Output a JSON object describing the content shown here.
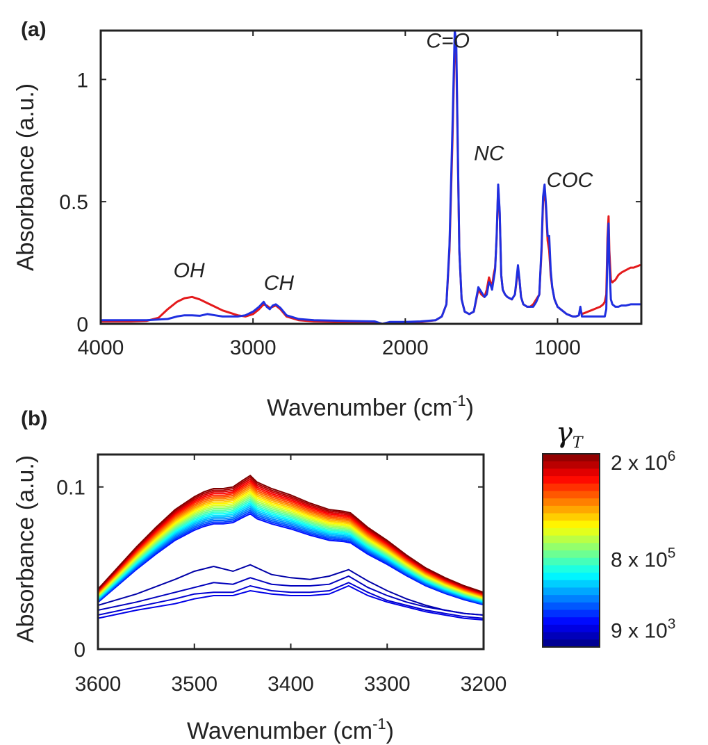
{
  "figure": {
    "panel_a_label": "(a)",
    "panel_b_label": "(b)"
  },
  "colors": {
    "red_curve": "#e41a1c",
    "blue_curve": "#1f2fe0",
    "axis": "#222222"
  },
  "chart_data": [
    {
      "id": "panel-a",
      "type": "line",
      "title": "",
      "xlabel": "Wavenumber (cm",
      "xlabel_sup": "-1",
      "xlabel_end": ")",
      "ylabel": "Absorbance (a.u.)",
      "xlim": [
        4000,
        450
      ],
      "ylim": [
        0,
        1.2
      ],
      "xticks": [
        4000,
        3000,
        2000,
        1000
      ],
      "xtick_labels": [
        "4000",
        "3000",
        "2000",
        "1000"
      ],
      "yticks": [
        0,
        0.5,
        1
      ],
      "ytick_labels": [
        "0",
        "0.5",
        "1"
      ],
      "grid": false,
      "annotations": [
        {
          "text": "OH",
          "x": 3420,
          "y": 0.19
        },
        {
          "text": "CH",
          "x": 2830,
          "y": 0.14
        },
        {
          "text": "C=O",
          "x": 1720,
          "y": 1.13
        },
        {
          "text": "NC",
          "x": 1450,
          "y": 0.67
        },
        {
          "text": "COC",
          "x": 920,
          "y": 0.56
        }
      ],
      "series": [
        {
          "name": "red",
          "color": "#e41a1c",
          "x": [
            4000,
            3800,
            3700,
            3620,
            3560,
            3500,
            3450,
            3400,
            3350,
            3300,
            3250,
            3200,
            3150,
            3100,
            3050,
            3000,
            2960,
            2930,
            2910,
            2890,
            2870,
            2850,
            2820,
            2780,
            2700,
            2600,
            2400,
            2200,
            2150,
            2100,
            2000,
            1900,
            1800,
            1760,
            1730,
            1710,
            1690,
            1675,
            1665,
            1655,
            1645,
            1630,
            1610,
            1580,
            1550,
            1520,
            1500,
            1480,
            1465,
            1450,
            1440,
            1430,
            1420,
            1410,
            1400,
            1390,
            1380,
            1370,
            1360,
            1345,
            1330,
            1300,
            1280,
            1260,
            1250,
            1240,
            1225,
            1200,
            1180,
            1160,
            1150,
            1140,
            1120,
            1105,
            1095,
            1085,
            1075,
            1065,
            1055,
            1045,
            1035,
            1020,
            1000,
            980,
            960,
            940,
            920,
            900,
            880,
            860,
            850,
            840,
            820,
            800,
            780,
            760,
            740,
            720,
            700,
            690,
            680,
            672,
            665,
            660,
            650,
            640,
            620,
            600,
            580,
            550,
            520,
            500,
            480,
            460,
            450
          ],
          "y": [
            0.01,
            0.01,
            0.012,
            0.025,
            0.06,
            0.09,
            0.105,
            0.11,
            0.1,
            0.085,
            0.07,
            0.055,
            0.045,
            0.035,
            0.03,
            0.04,
            0.06,
            0.08,
            0.075,
            0.065,
            0.07,
            0.075,
            0.06,
            0.03,
            0.015,
            0.01,
            0.008,
            0.006,
            0.0,
            0.005,
            0.005,
            0.008,
            0.015,
            0.03,
            0.08,
            0.3,
            0.75,
            1.15,
            1.1,
            0.7,
            0.3,
            0.1,
            0.05,
            0.04,
            0.05,
            0.14,
            0.12,
            0.11,
            0.14,
            0.19,
            0.17,
            0.15,
            0.2,
            0.23,
            0.35,
            0.56,
            0.45,
            0.2,
            0.14,
            0.12,
            0.11,
            0.1,
            0.12,
            0.22,
            0.18,
            0.11,
            0.08,
            0.07,
            0.07,
            0.08,
            0.09,
            0.1,
            0.12,
            0.3,
            0.5,
            0.55,
            0.46,
            0.34,
            0.3,
            0.2,
            0.15,
            0.1,
            0.07,
            0.06,
            0.05,
            0.04,
            0.035,
            0.03,
            0.03,
            0.035,
            0.06,
            0.04,
            0.045,
            0.05,
            0.055,
            0.06,
            0.065,
            0.07,
            0.08,
            0.09,
            0.12,
            0.35,
            0.44,
            0.3,
            0.18,
            0.17,
            0.18,
            0.2,
            0.21,
            0.22,
            0.23,
            0.23,
            0.235,
            0.24,
            0.24
          ]
        },
        {
          "name": "blue",
          "color": "#1f2fe0",
          "x": [
            4000,
            3800,
            3700,
            3620,
            3560,
            3500,
            3450,
            3400,
            3350,
            3300,
            3250,
            3200,
            3150,
            3100,
            3050,
            3000,
            2960,
            2930,
            2910,
            2890,
            2870,
            2850,
            2820,
            2780,
            2700,
            2600,
            2400,
            2200,
            2150,
            2100,
            2000,
            1900,
            1800,
            1760,
            1730,
            1710,
            1690,
            1675,
            1665,
            1655,
            1645,
            1630,
            1610,
            1580,
            1550,
            1520,
            1500,
            1480,
            1465,
            1450,
            1440,
            1430,
            1420,
            1410,
            1400,
            1390,
            1380,
            1370,
            1360,
            1345,
            1330,
            1300,
            1280,
            1260,
            1250,
            1240,
            1225,
            1200,
            1180,
            1160,
            1150,
            1140,
            1120,
            1105,
            1095,
            1085,
            1075,
            1065,
            1055,
            1045,
            1035,
            1020,
            1000,
            980,
            960,
            940,
            920,
            900,
            880,
            860,
            850,
            840,
            820,
            800,
            780,
            760,
            740,
            720,
            700,
            690,
            680,
            672,
            665,
            660,
            650,
            640,
            620,
            600,
            580,
            550,
            520,
            500,
            480,
            460,
            450
          ],
          "y": [
            0.015,
            0.015,
            0.015,
            0.018,
            0.02,
            0.03,
            0.035,
            0.035,
            0.033,
            0.04,
            0.035,
            0.03,
            0.03,
            0.03,
            0.035,
            0.05,
            0.07,
            0.09,
            0.07,
            0.06,
            0.075,
            0.08,
            0.065,
            0.035,
            0.02,
            0.015,
            0.012,
            0.01,
            0.0,
            0.008,
            0.008,
            0.01,
            0.015,
            0.03,
            0.08,
            0.32,
            0.8,
            1.2,
            1.15,
            0.72,
            0.3,
            0.1,
            0.05,
            0.04,
            0.05,
            0.15,
            0.13,
            0.11,
            0.12,
            0.17,
            0.16,
            0.14,
            0.18,
            0.22,
            0.36,
            0.57,
            0.46,
            0.2,
            0.14,
            0.12,
            0.11,
            0.1,
            0.12,
            0.24,
            0.18,
            0.11,
            0.08,
            0.07,
            0.07,
            0.07,
            0.08,
            0.09,
            0.12,
            0.32,
            0.52,
            0.57,
            0.48,
            0.36,
            0.36,
            0.22,
            0.15,
            0.1,
            0.07,
            0.06,
            0.05,
            0.04,
            0.035,
            0.03,
            0.03,
            0.035,
            0.07,
            0.03,
            0.03,
            0.03,
            0.03,
            0.03,
            0.03,
            0.03,
            0.03,
            0.03,
            0.06,
            0.3,
            0.41,
            0.25,
            0.1,
            0.08,
            0.07,
            0.07,
            0.075,
            0.075,
            0.08,
            0.08,
            0.08,
            0.08,
            0.08
          ]
        }
      ]
    },
    {
      "id": "panel-b",
      "type": "line",
      "title": "",
      "xlabel": "Wavenumber (cm",
      "xlabel_sup": "-1",
      "xlabel_end": ")",
      "ylabel": "Absorbance (a.u.)",
      "xlim": [
        3600,
        3200
      ],
      "ylim": [
        0,
        0.12
      ],
      "xticks": [
        3600,
        3500,
        3400,
        3300,
        3200
      ],
      "xtick_labels": [
        "3600",
        "3500",
        "3400",
        "3300",
        "3200"
      ],
      "yticks": [
        0,
        0.1
      ],
      "ytick_labels": [
        "0",
        "0.1"
      ],
      "grid": false,
      "base_shape": {
        "x": [
          3600,
          3580,
          3560,
          3540,
          3520,
          3500,
          3490,
          3480,
          3470,
          3460,
          3450,
          3442,
          3435,
          3420,
          3400,
          3380,
          3360,
          3345,
          3338,
          3330,
          3320,
          3300,
          3280,
          3260,
          3240,
          3220,
          3200
        ],
        "y": [
          0.037,
          0.05,
          0.063,
          0.075,
          0.086,
          0.094,
          0.097,
          0.099,
          0.099,
          0.1,
          0.104,
          0.107,
          0.103,
          0.099,
          0.095,
          0.09,
          0.086,
          0.085,
          0.084,
          0.08,
          0.075,
          0.067,
          0.058,
          0.05,
          0.044,
          0.039,
          0.035
        ]
      },
      "low_curves": [
        {
          "x": [
            3600,
            3560,
            3520,
            3500,
            3480,
            3460,
            3442,
            3420,
            3400,
            3380,
            3360,
            3340,
            3320,
            3300,
            3280,
            3260,
            3240,
            3220,
            3200
          ],
          "y": [
            0.027,
            0.034,
            0.043,
            0.048,
            0.051,
            0.048,
            0.052,
            0.046,
            0.044,
            0.043,
            0.045,
            0.049,
            0.042,
            0.036,
            0.031,
            0.027,
            0.024,
            0.022,
            0.021
          ]
        },
        {
          "x": [
            3600,
            3560,
            3520,
            3500,
            3480,
            3460,
            3442,
            3420,
            3400,
            3380,
            3360,
            3340,
            3320,
            3300,
            3280,
            3260,
            3240,
            3220,
            3200
          ],
          "y": [
            0.024,
            0.029,
            0.035,
            0.038,
            0.041,
            0.04,
            0.044,
            0.04,
            0.039,
            0.039,
            0.04,
            0.045,
            0.038,
            0.033,
            0.029,
            0.026,
            0.024,
            0.022,
            0.021
          ]
        },
        {
          "x": [
            3600,
            3560,
            3520,
            3500,
            3480,
            3460,
            3442,
            3420,
            3400,
            3380,
            3360,
            3340,
            3320,
            3300,
            3280,
            3260,
            3240,
            3220,
            3200
          ],
          "y": [
            0.021,
            0.026,
            0.031,
            0.034,
            0.035,
            0.035,
            0.039,
            0.036,
            0.035,
            0.035,
            0.036,
            0.041,
            0.035,
            0.03,
            0.027,
            0.024,
            0.022,
            0.02,
            0.019
          ]
        },
        {
          "x": [
            3600,
            3560,
            3520,
            3500,
            3480,
            3460,
            3442,
            3420,
            3400,
            3380,
            3360,
            3340,
            3320,
            3300,
            3280,
            3260,
            3240,
            3220,
            3200
          ],
          "y": [
            0.019,
            0.024,
            0.028,
            0.031,
            0.033,
            0.033,
            0.036,
            0.034,
            0.033,
            0.033,
            0.034,
            0.039,
            0.033,
            0.029,
            0.026,
            0.023,
            0.021,
            0.019,
            0.018
          ]
        }
      ],
      "scaled_curves": {
        "count": 22,
        "scale_min": 0.78,
        "scale_max": 1.0
      }
    }
  ],
  "colorbar": {
    "label_symbol": "γ",
    "label_subscript": "T",
    "ticks": [
      {
        "mantissa": "2 x 10",
        "exponent": "6",
        "position": 0.0
      },
      {
        "mantissa": "8 x 10",
        "exponent": "5",
        "position": 0.55
      },
      {
        "mantissa": "9 x 10",
        "exponent": "3",
        "position": 0.95
      }
    ],
    "colormap": "jet",
    "levels": 26
  }
}
